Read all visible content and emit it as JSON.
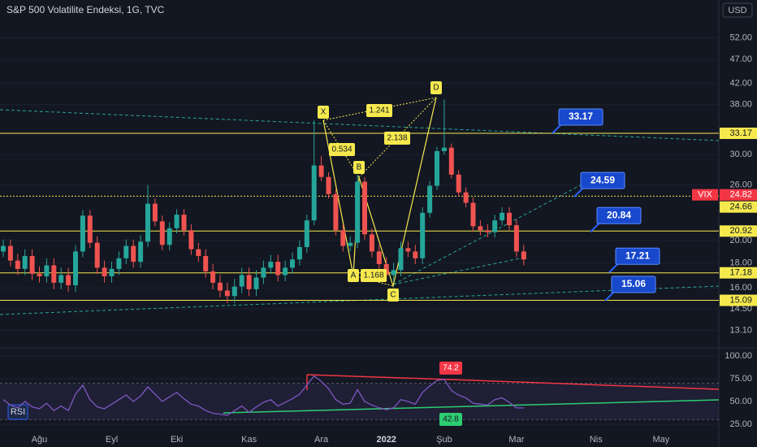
{
  "chart_data": {
    "type": "candlestick",
    "title": "S&P 500 Volatilite Endeksi, 1G, TVC",
    "currency": "USD",
    "categories": [
      null,
      null,
      null,
      null,
      null,
      "Ağu",
      null,
      null,
      null,
      null,
      null,
      null,
      null,
      null,
      null,
      "Eyl",
      null,
      null,
      null,
      null,
      null,
      null,
      null,
      null,
      "Eki",
      null,
      null,
      null,
      null,
      null,
      null,
      null,
      null,
      null,
      "Kas",
      null,
      null,
      null,
      null,
      null,
      null,
      null,
      null,
      null,
      "Ara",
      null,
      null,
      null,
      null,
      null,
      null,
      null,
      null,
      "2022",
      null,
      null,
      null,
      null,
      null,
      null,
      null,
      "Şub",
      null,
      null,
      null,
      null,
      null,
      null,
      null,
      null,
      null,
      "Mar",
      null,
      null,
      null,
      null,
      null,
      null,
      null,
      null,
      null,
      null,
      "Nis",
      null,
      null,
      null,
      null,
      null,
      null,
      null,
      null,
      "May",
      null,
      null,
      null
    ],
    "open": [
      19.0,
      19.5,
      18.2,
      17.5,
      18.6,
      17.1,
      16.9,
      17.8,
      16.4,
      17.0,
      16.2,
      19.0,
      22.5,
      19.8,
      17.6,
      16.9,
      17.5,
      18.4,
      19.5,
      18.1,
      19.9,
      23.8,
      21.9,
      19.6,
      21.2,
      22.6,
      21.0,
      19.2,
      18.6,
      17.3,
      16.4,
      15.8,
      15.4,
      16.1,
      17.0,
      15.9,
      16.8,
      17.6,
      18.1,
      17.0,
      17.6,
      18.3,
      19.4,
      22.0,
      28.5,
      27.0,
      24.9,
      21.0,
      19.5,
      19.8,
      26.4,
      20.6,
      19.0,
      17.9,
      17.0,
      17.4,
      19.3,
      19.0,
      18.4,
      22.8,
      25.9,
      30.5,
      31.0,
      27.3,
      25.1,
      23.9,
      21.4,
      21.0,
      20.8,
      22.0,
      22.8,
      21.5,
      19.0,
      null,
      null,
      null,
      null,
      null,
      null,
      null,
      null,
      null,
      null,
      null,
      null,
      null,
      null,
      null,
      null,
      null,
      null,
      null,
      null,
      null,
      null
    ],
    "high": [
      20.1,
      20.1,
      18.8,
      19.2,
      19.2,
      17.7,
      18.4,
      18.4,
      17.6,
      17.6,
      19.6,
      23.1,
      23.1,
      20.4,
      18.2,
      18.1,
      19.0,
      20.1,
      20.1,
      20.5,
      26.0,
      24.4,
      22.5,
      21.8,
      23.2,
      23.2,
      21.6,
      19.8,
      19.2,
      17.9,
      17.0,
      16.4,
      16.7,
      17.6,
      17.6,
      17.4,
      18.2,
      18.7,
      18.7,
      18.2,
      18.9,
      20.0,
      22.6,
      35.3,
      29.8,
      27.6,
      25.5,
      21.6,
      20.4,
      27.2,
      27.0,
      21.2,
      19.6,
      18.5,
      18.0,
      19.9,
      19.9,
      19.6,
      23.4,
      26.5,
      31.1,
      38.9,
      31.6,
      27.9,
      25.7,
      24.5,
      22.0,
      21.6,
      22.6,
      23.4,
      23.4,
      22.1,
      19.6,
      null,
      null,
      null,
      null,
      null,
      null,
      null,
      null,
      null,
      null,
      null,
      null,
      null,
      null,
      null,
      null,
      null,
      null,
      null,
      null,
      null,
      null
    ],
    "low": [
      18.5,
      17.7,
      17.0,
      17.0,
      16.6,
      16.4,
      16.4,
      15.9,
      15.9,
      15.7,
      15.7,
      18.5,
      19.3,
      17.1,
      16.4,
      16.4,
      17.0,
      17.9,
      17.6,
      17.6,
      19.4,
      21.4,
      19.1,
      19.1,
      20.7,
      20.5,
      18.7,
      18.1,
      16.8,
      15.9,
      15.3,
      14.9,
      14.9,
      15.6,
      15.4,
      15.4,
      16.3,
      17.1,
      16.5,
      16.5,
      17.1,
      17.8,
      18.9,
      21.5,
      26.5,
      24.4,
      20.5,
      19.0,
      19.0,
      19.3,
      20.1,
      18.5,
      17.4,
      16.5,
      16.5,
      16.9,
      18.5,
      17.9,
      17.9,
      22.3,
      25.4,
      30.0,
      26.8,
      24.6,
      23.4,
      20.9,
      20.5,
      20.3,
      20.3,
      21.5,
      21.0,
      18.5,
      17.8,
      null,
      null,
      null,
      null,
      null,
      null,
      null,
      null,
      null,
      null,
      null,
      null,
      null,
      null,
      null,
      null,
      null,
      null,
      null,
      null,
      null,
      null
    ],
    "close": [
      19.5,
      18.2,
      17.5,
      18.6,
      17.1,
      16.9,
      17.8,
      16.4,
      17.0,
      16.2,
      19.0,
      22.5,
      19.8,
      17.6,
      16.9,
      17.5,
      18.4,
      19.5,
      18.1,
      19.9,
      23.8,
      21.9,
      19.6,
      21.2,
      22.6,
      21.0,
      19.2,
      18.6,
      17.3,
      16.4,
      15.8,
      15.4,
      16.1,
      17.0,
      15.9,
      16.8,
      17.6,
      18.1,
      17.0,
      17.6,
      18.3,
      19.4,
      22.0,
      28.5,
      27.0,
      24.9,
      21.0,
      19.5,
      19.8,
      26.4,
      20.6,
      19.0,
      17.9,
      17.0,
      17.4,
      19.3,
      19.0,
      18.4,
      22.8,
      25.9,
      30.5,
      31.0,
      27.3,
      25.1,
      23.9,
      21.4,
      21.0,
      20.8,
      22.0,
      22.8,
      21.5,
      19.0,
      18.3,
      null,
      null,
      null,
      null,
      null,
      null,
      null,
      null,
      null,
      null,
      null,
      null,
      null,
      null,
      null,
      null,
      null,
      null,
      null,
      null,
      null,
      null
    ],
    "up_color": "#26a69a",
    "down_color": "#ef5350",
    "log_scale": true,
    "grid": true,
    "ylim": [
      12.2,
      62.2
    ],
    "yticks": [
      {
        "value": 52,
        "label": "52.00"
      },
      {
        "value": 47,
        "label": "47.00"
      },
      {
        "value": 42,
        "label": "42.00"
      },
      {
        "value": 38,
        "label": "38.00"
      },
      {
        "value": 30,
        "label": "30.00"
      },
      {
        "value": 26,
        "label": "26.00"
      },
      {
        "value": 20,
        "label": "20.00"
      },
      {
        "value": 18,
        "label": "18.00"
      },
      {
        "value": 16,
        "label": "16.00"
      },
      {
        "value": 14.5,
        "label": "14.50"
      },
      {
        "value": 13.1,
        "label": "13.10"
      }
    ],
    "levels": [
      33.17,
      24.66,
      20.92,
      17.18,
      15.09
    ],
    "level_color": "#f5e94e",
    "symbol": "VIX",
    "last_price": 24.82,
    "last_color": "#f23645",
    "callouts": [
      33.17,
      24.59,
      20.84,
      17.21,
      15.06
    ],
    "pattern": {
      "points": [
        "X",
        "A",
        "B",
        "C",
        "D"
      ],
      "ratios": [
        "1.241",
        "0.534",
        "2.138",
        "1.168"
      ]
    },
    "indicator": {
      "type": "line",
      "name": "RSI",
      "color": "#7e57c2",
      "values": [
        52,
        46,
        43,
        50,
        44,
        42,
        48,
        40,
        45,
        40,
        58,
        68,
        52,
        44,
        42,
        47,
        52,
        57,
        50,
        56,
        66,
        58,
        50,
        55,
        60,
        53,
        47,
        45,
        40,
        37,
        36,
        35,
        40,
        45,
        38,
        44,
        49,
        52,
        45,
        49,
        53,
        58,
        68,
        78,
        72,
        64,
        52,
        47,
        48,
        63,
        50,
        46,
        43,
        41,
        43,
        52,
        50,
        47,
        60,
        67,
        73,
        74.2,
        62,
        57,
        54,
        48,
        47,
        46,
        52,
        54,
        49,
        43,
        42.8,
        null,
        null,
        null,
        null,
        null,
        null,
        null,
        null,
        null,
        null,
        null,
        null,
        null,
        null,
        null,
        null,
        null,
        null,
        null,
        null,
        null,
        null
      ],
      "ylim": [
        8.9,
        107.1
      ],
      "band": [
        30,
        70
      ],
      "yticks": [
        {
          "value": 100,
          "label": "100.00"
        },
        {
          "value": 75,
          "label": "75.00"
        },
        {
          "value": 50,
          "label": "50.00"
        },
        {
          "value": 25,
          "label": "25.00"
        }
      ],
      "line_labels": [
        74.2,
        42.8
      ]
    }
  }
}
